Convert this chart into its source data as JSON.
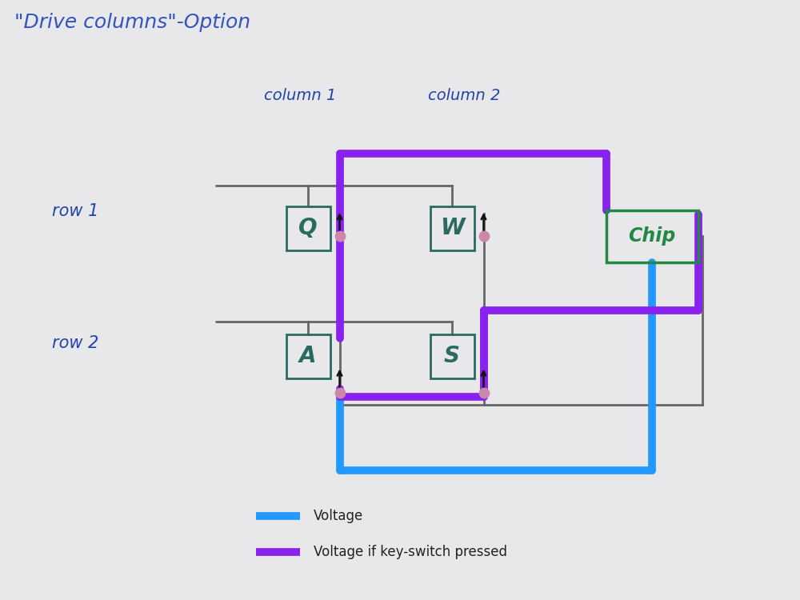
{
  "title": "\"Drive columns\"-Option",
  "title_color": "#3355bb",
  "title_fontsize": 18,
  "bg_color": "#e8e8ea",
  "col1_label": "column 1",
  "col2_label": "column 2",
  "row1_label": "row 1",
  "row2_label": "row 2",
  "label_color": "#2244aa",
  "switch_color": "#2a6a60",
  "chip_color": "#228844",
  "wire_color": "#666666",
  "blue_color": "#2299ff",
  "purple_color": "#8822ee",
  "arrow_color": "#111111",
  "diode_pink": "#cc88aa",
  "legend_voltage": "Voltage",
  "legend_pressed": "Voltage if key-switch pressed"
}
